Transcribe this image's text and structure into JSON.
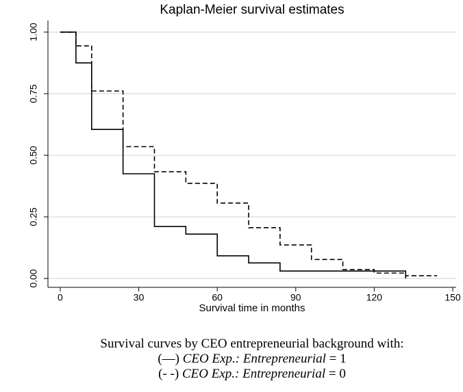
{
  "chart_data": {
    "type": "step",
    "title": "Kaplan-Meier survival estimates",
    "x_label": "Survival time in months",
    "xlim": [
      -4.7,
      151.3
    ],
    "ylim": [
      -0.036,
      1.047
    ],
    "xticks": [
      0,
      30,
      60,
      90,
      120,
      150
    ],
    "yticks": [
      {
        "value": 0,
        "label": "0.00"
      },
      {
        "value": 0.25,
        "label": "0.25"
      },
      {
        "value": 0.5,
        "label": "0.50"
      },
      {
        "value": 0.75,
        "label": "0.75"
      },
      {
        "value": 1,
        "label": "1.00"
      }
    ],
    "grid": true,
    "series": [
      {
        "color": "#000000",
        "dashed": false,
        "x": [
          0,
          6,
          12,
          24,
          36,
          48,
          60,
          72,
          84,
          132
        ],
        "values": [
          1,
          0.875,
          0.605,
          0.425,
          0.211,
          0.18,
          0.092,
          0.063,
          0.03,
          0
        ]
      },
      {
        "color": "#000000",
        "dashed": true,
        "x": [
          0,
          6,
          12,
          24,
          36,
          48,
          60,
          72,
          84,
          96,
          108,
          120,
          132,
          144
        ],
        "values": [
          1,
          0.944,
          0.761,
          0.535,
          0.433,
          0.386,
          0.306,
          0.206,
          0.136,
          0.077,
          0.036,
          0.022,
          0.011,
          0.011
        ]
      }
    ]
  },
  "caption": {
    "line1": "Survival curves by CEO entrepreneurial background with:",
    "line2": {
      "prefix": "(—) ",
      "italic": "CEO Exp.: Entrepreneurial",
      "suffix": " = 1"
    },
    "line3": {
      "prefix": "(- -) ",
      "italic": "CEO Exp.: Entrepreneurial",
      "suffix": " = 0"
    }
  }
}
